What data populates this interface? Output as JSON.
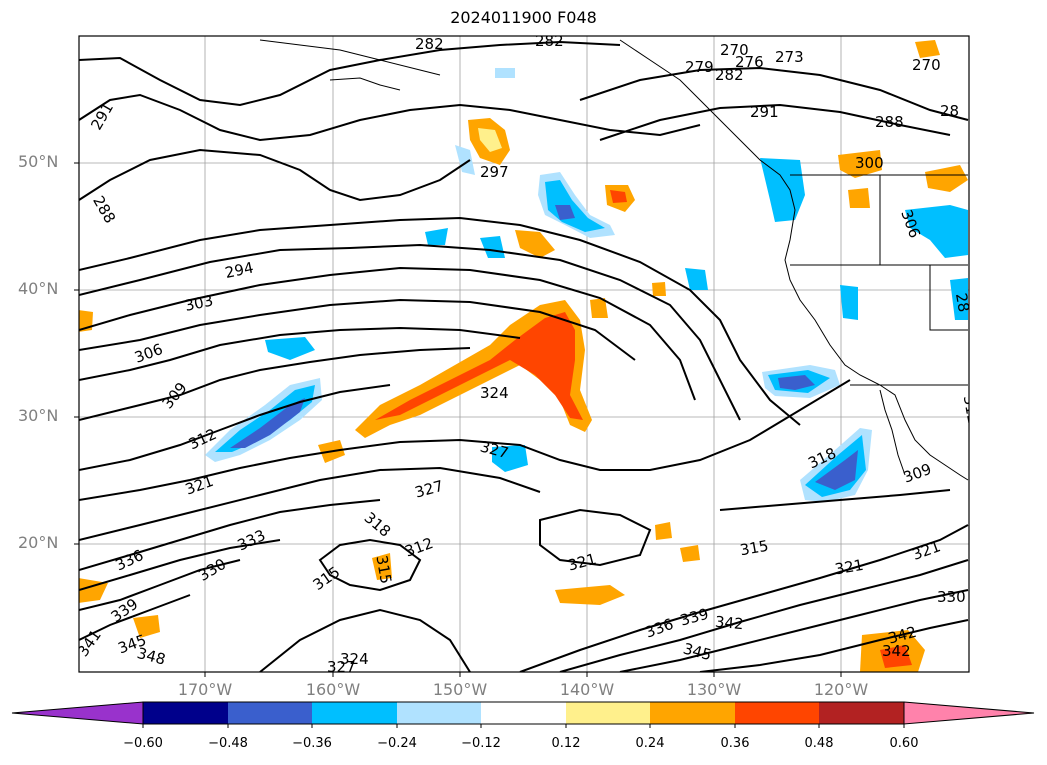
{
  "title": "2024011900 F048",
  "lat_labels": [
    "50°N",
    "40°N",
    "30°N",
    "20°N"
  ],
  "lon_labels": [
    "170°W",
    "160°W",
    "150°W",
    "140°W",
    "130°W",
    "120°W"
  ],
  "colorbar": {
    "ticks": [
      "-0.60",
      "-0.48",
      "-0.36",
      "-0.24",
      "-0.12",
      "0.12",
      "0.24",
      "0.36",
      "0.48",
      "0.60"
    ],
    "colors": [
      "#9932cc",
      "#00008b",
      "#3a5fcd",
      "#00bfff",
      "#b0e2ff",
      "#ffffff",
      "#fff08c",
      "#ffa500",
      "#ff4500",
      "#b22222",
      "#ff82ab"
    ]
  },
  "contour_labels": [
    {
      "text": "282"
    },
    {
      "text": "282"
    },
    {
      "text": "270"
    },
    {
      "text": "273"
    },
    {
      "text": "276"
    },
    {
      "text": "279"
    },
    {
      "text": "282"
    },
    {
      "text": "270"
    },
    {
      "text": "291"
    },
    {
      "text": "288"
    },
    {
      "text": "28"
    },
    {
      "text": "291"
    },
    {
      "text": "297"
    },
    {
      "text": "300"
    },
    {
      "text": "288"
    },
    {
      "text": "306"
    },
    {
      "text": "294"
    },
    {
      "text": "303"
    },
    {
      "text": "306"
    },
    {
      "text": "309"
    },
    {
      "text": "312"
    },
    {
      "text": "324"
    },
    {
      "text": "321"
    },
    {
      "text": "327"
    },
    {
      "text": "327"
    },
    {
      "text": "318"
    },
    {
      "text": "309"
    },
    {
      "text": "312"
    },
    {
      "text": "315"
    },
    {
      "text": "312"
    },
    {
      "text": "318"
    },
    {
      "text": "336"
    },
    {
      "text": "330"
    },
    {
      "text": "333"
    },
    {
      "text": "315"
    },
    {
      "text": "321"
    },
    {
      "text": "315"
    },
    {
      "text": "321"
    },
    {
      "text": "321"
    },
    {
      "text": "330"
    },
    {
      "text": "339"
    },
    {
      "text": "341"
    },
    {
      "text": "345"
    },
    {
      "text": "348"
    },
    {
      "text": "324"
    },
    {
      "text": "327"
    },
    {
      "text": "339"
    },
    {
      "text": "342"
    },
    {
      "text": "336"
    },
    {
      "text": "345"
    },
    {
      "text": "342"
    },
    {
      "text": "342"
    },
    {
      "text": "28"
    }
  ]
}
